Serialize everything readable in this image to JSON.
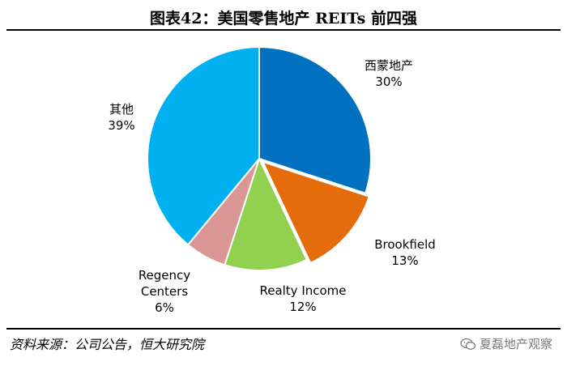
{
  "title": "图表42：美国零售地产 REITs 前四强",
  "source": "资料来源：公司公告，恒大研究院",
  "watermark": "夏磊地产观察",
  "chart_data": {
    "type": "pie",
    "title": "图表42：美国零售地产 REITs 前四强",
    "slices": [
      {
        "name": "西蒙地产",
        "value": 30,
        "label": "30%",
        "color": "#0070C0"
      },
      {
        "name": "Brookfield",
        "value": 13,
        "label": "13%",
        "color": "#E46C0A"
      },
      {
        "name": "Realty Income",
        "value": 12,
        "label": "12%",
        "color": "#92D050"
      },
      {
        "name": "Regency Centers",
        "value": 6,
        "label": "6%",
        "color": "#DA9694"
      },
      {
        "name": "其他",
        "value": 39,
        "label": "39%",
        "color": "#00B0F0"
      }
    ],
    "start_angle_deg": 90,
    "direction": "clockwise"
  }
}
